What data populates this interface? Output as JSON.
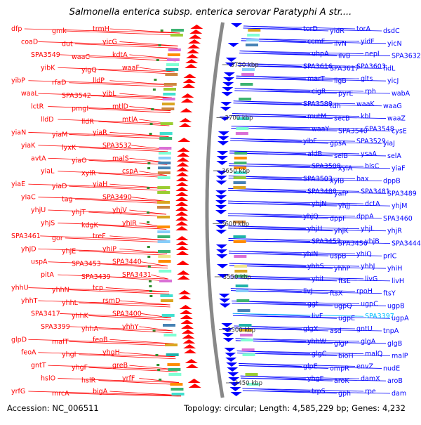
{
  "title": "Salmonella enterica subsp. enterica serovar Paratyphi A str....",
  "accession": "Accession: NC_006511",
  "topology": "Topology: circular; Length: 4,585,229 bp; Genes: 4,232",
  "colors": {
    "plus_strand": "#ff0000",
    "minus_strand": "#0000ff",
    "highlight": "#00bfff",
    "backbone": "#888888",
    "tick": "#2f8f2f"
  },
  "kbp_ticks": [
    "3750 kbp",
    "3700 kbp",
    "3650 kbp",
    "3600 kbp",
    "3550 kbp",
    "3500 kbp",
    "3450 kbp"
  ],
  "left_genes": [
    "dfp",
    "gmk",
    "trmH",
    "coaD",
    "dut",
    "yicG",
    "SPA3549",
    "waaC",
    "kdtA",
    "yibK",
    "yigQ",
    "waaF",
    "yibP",
    "rfaD",
    "lldP",
    "waaL",
    "SPA3542",
    "yibL",
    "lctR",
    "pmgI",
    "mtlD",
    "lldD",
    "lldR",
    "mtlA",
    "yiaN",
    "yiaM",
    "yiaR",
    "yiaK",
    "lyxK",
    "SPA3532",
    "avtA",
    "yiaO",
    "malS",
    "yiaL",
    "xylR",
    "cspA",
    "yiaE",
    "yiaD",
    "yiaH",
    "yiaC",
    "tag",
    "SPA3490",
    "yhjU",
    "yhjT",
    "yhjV",
    "yhjS",
    "kdgK",
    "yhiR",
    "SPA3461",
    "gor",
    "treF",
    "yhjD",
    "yhjE",
    "yhiP",
    "uspA",
    "SPA3453",
    "SPA3440",
    "pitA",
    "SPA3439",
    "SPA3431",
    "yhhU",
    "yhhN",
    "tcp",
    "yhhT",
    "yhhL",
    "rsmD",
    "SPA3417",
    "yhhK",
    "SPA3400",
    "SPA3399",
    "yhhA",
    "yhhY",
    "glpD",
    "malT",
    "feoB",
    "feoA",
    "yhgI",
    "yhgH",
    "gntT",
    "yhgF",
    "greB",
    "hslO",
    "hslR",
    "yrfF",
    "yrfG",
    "mrcA",
    "bigA"
  ],
  "right_genes": [
    "torD",
    "yidR",
    "torA",
    "dsdC",
    "ccmF",
    "ilvN",
    "yidF",
    "yicN",
    "uhpA",
    "ilvB",
    "nepI",
    "SPA3632",
    "SPA3616",
    "SPA3617",
    "SPA3603",
    "fidL",
    "marT",
    "ligB",
    "glts",
    "yicJ",
    "cigR",
    "pyrE",
    "rph",
    "wabA",
    "SPA3588",
    "tdh",
    "waaK",
    "waaG",
    "mutM",
    "secB",
    "kbl",
    "waaZ",
    "waaY",
    "SPA3540",
    "SPA3548",
    "cysE",
    "yibF",
    "gpsA",
    "SPA3529",
    "yiaJ",
    "aldB",
    "selB",
    "ysaA",
    "selA",
    "SPA3508",
    "xylA",
    "bisC",
    "yiaF",
    "SPA3503",
    "xylB",
    "bax",
    "dppB",
    "SPA3488",
    "yafP",
    "SPA3481",
    "SPA3489",
    "yhjN",
    "yhjJ",
    "dctA",
    "yhjM",
    "yhjQ",
    "dppF",
    "dppA",
    "SPA3460",
    "yhjH",
    "yhjK",
    "yhjL",
    "yhjR",
    "SPA3452",
    "SPA3456",
    "yhjB",
    "SPA3444",
    "yhiN",
    "uspB",
    "yhiQ",
    "prlC",
    "yhhS",
    "yhhP",
    "yhhJ",
    "yhiH",
    "yhiI",
    "ftsE",
    "livG",
    "livH",
    "livJ",
    "ftsX",
    "rpoH",
    "ftsY",
    "ggt",
    "ugpQ",
    "ugpC",
    "ugpB",
    "livF",
    "ugpE",
    "SPA3397",
    "ugpA",
    "glgX",
    "asd",
    "gntU",
    "tnpA",
    "yhhW",
    "glgP",
    "glgA",
    "glgB",
    "glgC",
    "bioH",
    "malQ",
    "malP",
    "glpE",
    "ompR",
    "envZ",
    "nudE",
    "yhgE",
    "aroK",
    "damX",
    "aroB",
    "trpS",
    "gph",
    "rpe",
    "dam"
  ],
  "highlight_gene": "SPA3397"
}
